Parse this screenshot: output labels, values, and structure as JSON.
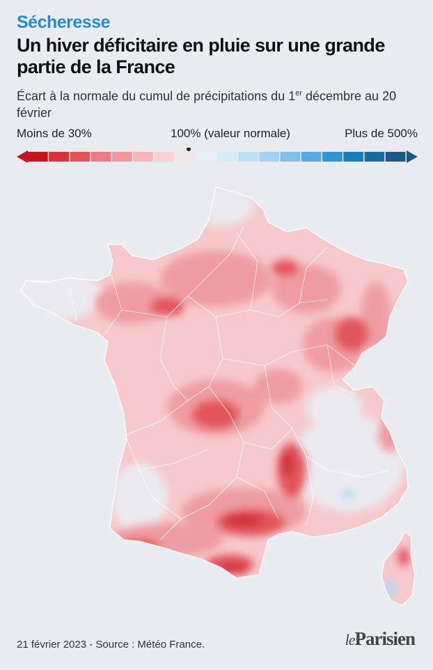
{
  "header": {
    "kicker": "Sécheresse",
    "title": "Un hiver déficitaire en pluie sur une grande partie de la France",
    "subtitle_part1": "Écart à la normale du cumul de précipitations du 1",
    "subtitle_sup": "er",
    "subtitle_part2": " décembre au 20 février"
  },
  "legend": {
    "left_label": "Moins de 30%",
    "mid_label": "100% (valeur normale)",
    "right_label": "Plus de 500%",
    "colors": [
      "#c8141e",
      "#d9313a",
      "#e4525a",
      "#ed7a80",
      "#f2989c",
      "#f6b8bb",
      "#f8d2d4",
      "#f0e6ea",
      "#e7eef5",
      "#d7ebf8",
      "#bfe0f4",
      "#a3d2f0",
      "#7fc0ea",
      "#57abe2",
      "#2f93d6",
      "#1a7cc0",
      "#176aa3",
      "#1c5a85"
    ]
  },
  "map": {
    "regions": [
      "France métropolitaine",
      "Corse"
    ],
    "colors": {
      "base": "#f6c9cc",
      "mid": "#ef9da2",
      "strong": "#e3545c",
      "deep": "#d4303a",
      "normal": "#ecebf1",
      "wet": "#b8d7f0",
      "borders": "#ffffff"
    }
  },
  "footer": {
    "source": "21 février 2023 - Source : Météo France.",
    "logo_le": "le",
    "logo_name": "Parisien"
  }
}
